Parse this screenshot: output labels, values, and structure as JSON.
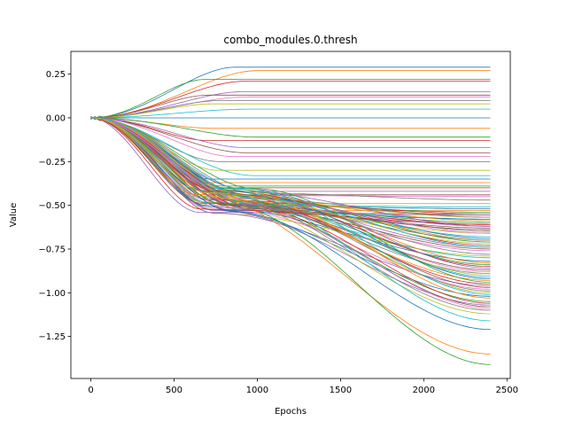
{
  "chart_data": {
    "type": "line",
    "title": "combo_modules.0.thresh",
    "xlabel": "Epochs",
    "ylabel": "Value",
    "xlim": [
      -120,
      2520
    ],
    "ylim": [
      -1.49,
      0.38
    ],
    "xticks": [
      0,
      500,
      1000,
      1500,
      2000,
      2500
    ],
    "xtick_labels": [
      "0",
      "500",
      "1000",
      "1500",
      "2000",
      "2500"
    ],
    "yticks": [
      0.25,
      0.0,
      -0.25,
      -0.5,
      -0.75,
      -1.0,
      -1.25
    ],
    "ytick_labels": [
      "0.25",
      "0.00",
      "−0.25",
      "−0.50",
      "−0.75",
      "−1.00",
      "−1.25"
    ],
    "grid": false,
    "legend": "none",
    "x_range": [
      0,
      2400
    ],
    "series_count": 100,
    "series_shape": "all start at 0.00, fall along a shared curve to about -0.40 to -0.55 near 600-900 epochs, then fan out to final values",
    "final_values": [
      0.29,
      0.27,
      0.22,
      0.21,
      0.15,
      0.13,
      0.12,
      0.1,
      0.08,
      0.05,
      0.0,
      -0.06,
      -0.11,
      -0.13,
      -0.17,
      -0.2,
      -0.22,
      -0.25,
      -0.3,
      -0.33,
      -0.35,
      -0.37,
      -0.39,
      -0.4,
      -0.42,
      -0.44,
      -0.45,
      -0.47,
      -0.49,
      -0.51,
      -0.52,
      -0.53,
      -0.54,
      -0.55,
      -0.55,
      -0.56,
      -0.56,
      -0.57,
      -0.57,
      -0.58,
      -0.58,
      -0.59,
      -0.6,
      -0.61,
      -0.62,
      -0.63,
      -0.64,
      -0.65,
      -0.66,
      -0.68,
      -0.69,
      -0.7,
      -0.71,
      -0.73,
      -0.74,
      -0.75,
      -0.76,
      -0.78,
      -0.79,
      -0.8,
      -0.82,
      -0.83,
      -0.84,
      -0.85,
      -0.86,
      -0.87,
      -0.88,
      -0.89,
      -0.9,
      -0.91,
      -0.92,
      -0.93,
      -0.94,
      -0.95,
      -0.96,
      -0.97,
      -0.98,
      -0.99,
      -1.0,
      -1.01,
      -1.02,
      -1.03,
      -1.05,
      -1.06,
      -1.07,
      -1.08,
      -1.09,
      -1.1,
      -1.12,
      -1.16,
      -1.21,
      -1.35,
      -1.41,
      -0.61,
      -0.62,
      -0.64,
      -0.66,
      -0.7,
      -0.72,
      -0.74
    ],
    "series_colors": [
      "#1f77b4",
      "#ff7f0e",
      "#2ca02c",
      "#d62728",
      "#9467bd",
      "#8c564b",
      "#e377c2",
      "#7f7f7f",
      "#bcbd22",
      "#17becf"
    ]
  }
}
